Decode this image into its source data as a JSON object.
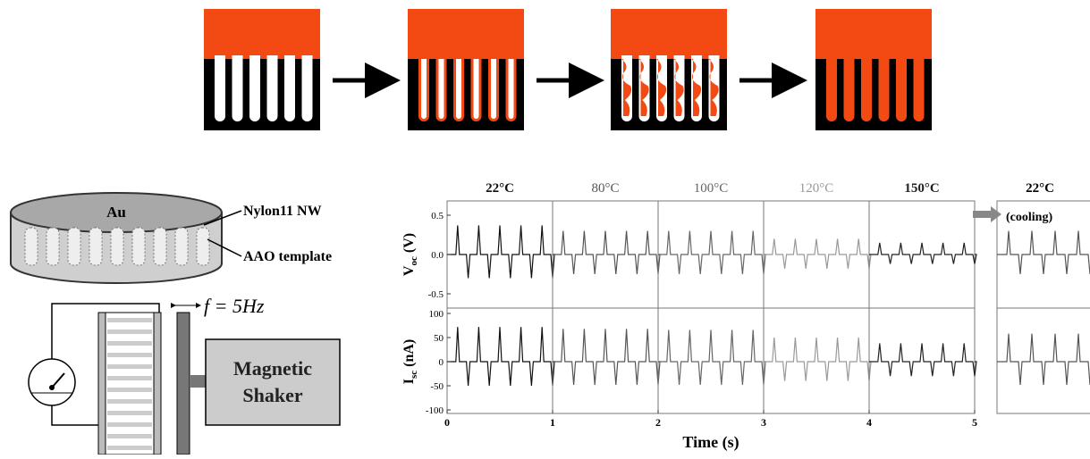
{
  "schematic": {
    "au_label": "Au",
    "nw_label": "Nylon11 NW",
    "aao_label": "AAO template",
    "freq_label": "f = 5Hz",
    "shaker_line1": "Magnetic",
    "shaker_line2": "Shaker"
  },
  "plot": {
    "segments": [
      {
        "temp": "22°C",
        "color": "#111111",
        "voc_peak": 0.37,
        "voc_trough": -0.3,
        "isc_peak": 72,
        "isc_trough": -50
      },
      {
        "temp": "80°C",
        "color": "#555555",
        "voc_peak": 0.3,
        "voc_trough": -0.25,
        "isc_peak": 68,
        "isc_trough": -48
      },
      {
        "temp": "100°C",
        "color": "#666666",
        "voc_peak": 0.3,
        "voc_trough": -0.25,
        "isc_peak": 66,
        "isc_trough": -48
      },
      {
        "temp": "120°C",
        "color": "#999999",
        "voc_peak": 0.2,
        "voc_trough": -0.18,
        "isc_peak": 50,
        "isc_trough": -40
      },
      {
        "temp": "150°C",
        "color": "#222222",
        "voc_peak": 0.15,
        "voc_trough": -0.12,
        "isc_peak": 38,
        "isc_trough": -30
      }
    ],
    "cooling": {
      "temp": "22°C",
      "label": "(cooling)",
      "color": "#555555",
      "voc_peak": 0.3,
      "voc_trough": -0.25,
      "isc_peak": 58,
      "isc_trough": -48
    },
    "voc_axis": {
      "main": "V",
      "sub": "oc",
      "unit": " (V)",
      "ticks": [
        "0.5",
        "0.0",
        "-0.5"
      ]
    },
    "isc_axis": {
      "main": "I",
      "sub": "sc",
      "unit": " (nA)",
      "ticks": [
        "100",
        "50",
        "0",
        "-50",
        "-100"
      ]
    },
    "x_axis": {
      "label": "Time (s)",
      "ticks": [
        "0",
        "1",
        "2",
        "3",
        "4",
        "5"
      ]
    }
  }
}
